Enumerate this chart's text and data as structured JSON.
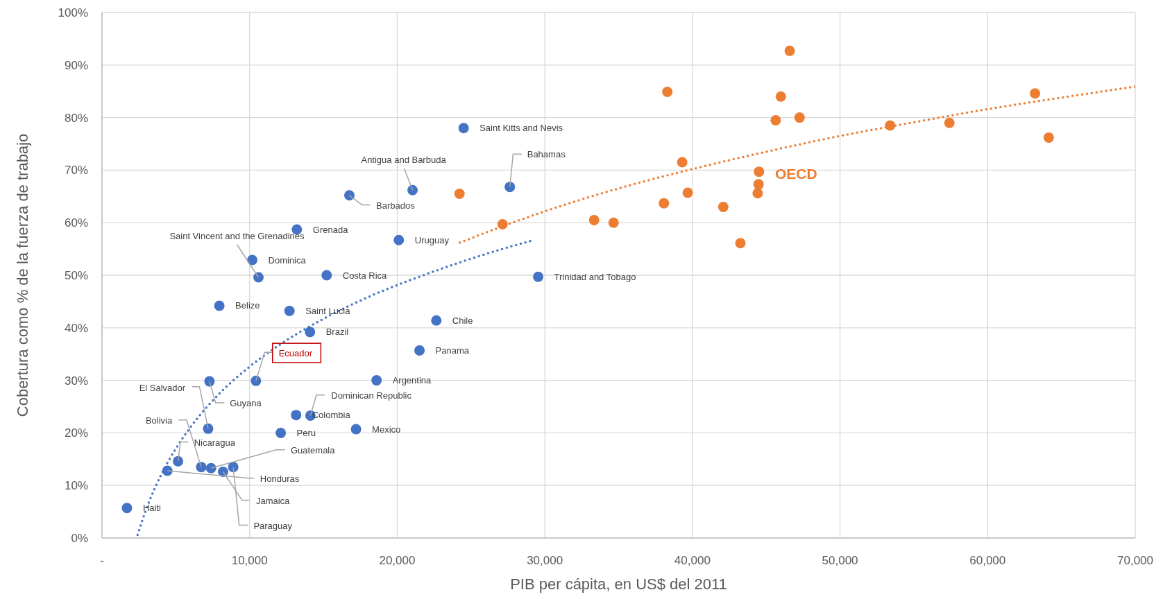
{
  "chart_data": {
    "type": "scatter",
    "xlabel": "PIB per cápita, en US$ del 2011",
    "ylabel": "Cobertura como % de la fuerza de trabajo",
    "xlim": [
      0,
      70000
    ],
    "xticks": [
      {
        "value": 0,
        "label": "-"
      },
      {
        "value": 10000,
        "label": "10,000"
      },
      {
        "value": 20000,
        "label": "20,000"
      },
      {
        "value": 30000,
        "label": "30,000"
      },
      {
        "value": 40000,
        "label": "40,000"
      },
      {
        "value": 50000,
        "label": "50,000"
      },
      {
        "value": 60000,
        "label": "60,000"
      },
      {
        "value": 70000,
        "label": "70,000"
      }
    ],
    "ylim": [
      0,
      100
    ],
    "yticks": [
      {
        "value": 0,
        "label": "0%"
      },
      {
        "value": 10,
        "label": "10%"
      },
      {
        "value": 20,
        "label": "20%"
      },
      {
        "value": 30,
        "label": "30%"
      },
      {
        "value": 40,
        "label": "40%"
      },
      {
        "value": 50,
        "label": "50%"
      },
      {
        "value": 60,
        "label": "60%"
      },
      {
        "value": 70,
        "label": "70%"
      },
      {
        "value": 80,
        "label": "80%"
      },
      {
        "value": 90,
        "label": "90%"
      },
      {
        "value": 100,
        "label": "100%"
      }
    ],
    "grid": true,
    "series": [
      {
        "marker": "circle",
        "color": "#4472c4",
        "x": [
          24500,
          21040,
          27630,
          16760,
          13200,
          20110,
          10180,
          10600,
          15220,
          29550,
          7950,
          12700,
          22650,
          14090,
          21510,
          10430,
          18600,
          7280,
          14120,
          13150,
          12110,
          17210,
          7190,
          5150,
          6720,
          7390,
          8200,
          8890,
          4430,
          1690
        ],
        "values": [
          78.0,
          66.2,
          66.8,
          65.2,
          58.7,
          56.7,
          52.9,
          49.6,
          50.0,
          49.7,
          44.2,
          43.2,
          41.4,
          39.2,
          35.7,
          29.9,
          30.0,
          29.8,
          23.3,
          23.4,
          20.0,
          20.7,
          20.8,
          14.6,
          13.5,
          13.3,
          12.6,
          13.5,
          12.8,
          5.7
        ]
      },
      {
        "type": "line",
        "color": "#4472c4",
        "line_style": "dotted",
        "x": [
          2410,
          3000,
          4000,
          5000,
          6000,
          8000,
          10000,
          12000,
          15000,
          18000,
          21000,
          24000,
          27000,
          29270
        ],
        "values": [
          0.6,
          5.5,
          12.0,
          17.0,
          21.1,
          27.6,
          32.6,
          36.7,
          41.7,
          45.8,
          49.2,
          52.2,
          54.9,
          56.7
        ]
      },
      {
        "name": "OECD",
        "marker": "circle",
        "color": "#ed7d31",
        "x": [
          24220,
          27140,
          38300,
          46590,
          45990,
          45640,
          47260,
          39310,
          44510,
          44480,
          44420,
          39680,
          38070,
          42090,
          33340,
          34660,
          43250,
          53390,
          57410,
          63210,
          64140
        ],
        "values": [
          65.5,
          59.7,
          84.9,
          92.7,
          84.0,
          79.5,
          80.0,
          71.5,
          69.7,
          67.3,
          65.6,
          65.7,
          63.7,
          63.0,
          60.5,
          60.0,
          56.1,
          78.5,
          79.0,
          84.6,
          76.2
        ]
      },
      {
        "type": "line",
        "color": "#ed7d31",
        "line_style": "dotted",
        "x": [
          24240,
          28000,
          32000,
          36000,
          40000,
          45000,
          50000,
          55000,
          60000,
          65000,
          70000
        ],
        "values": [
          56.2,
          60.2,
          64.0,
          67.3,
          70.2,
          73.5,
          76.5,
          79.1,
          81.6,
          83.8,
          85.9
        ]
      }
    ],
    "annotations": [
      {
        "text": "Saint Kitts and Nevis",
        "x": 24500,
        "y": 78.0
      },
      {
        "text": "Antigua and Barbuda",
        "x": 21040,
        "y": 66.2
      },
      {
        "text": "Bahamas",
        "x": 27630,
        "y": 66.8
      },
      {
        "text": "Barbados",
        "x": 16760,
        "y": 65.2
      },
      {
        "text": "Grenada",
        "x": 13200,
        "y": 58.7
      },
      {
        "text": "Uruguay",
        "x": 20110,
        "y": 56.7
      },
      {
        "text": "Dominica",
        "x": 10180,
        "y": 52.9
      },
      {
        "text": "Saint Vincent and the Grenadines",
        "x": 10600,
        "y": 49.6
      },
      {
        "text": "Costa Rica",
        "x": 15220,
        "y": 50.0
      },
      {
        "text": "Trinidad and Tobago",
        "x": 29550,
        "y": 49.7
      },
      {
        "text": "Belize",
        "x": 7950,
        "y": 44.2
      },
      {
        "text": "Saint Lucia",
        "x": 12700,
        "y": 43.2
      },
      {
        "text": "Chile",
        "x": 22650,
        "y": 41.4
      },
      {
        "text": "Brazil",
        "x": 14090,
        "y": 39.2
      },
      {
        "text": "Panama",
        "x": 21510,
        "y": 35.7
      },
      {
        "text": "Ecuador",
        "x": 10430,
        "y": 29.9
      },
      {
        "text": "Argentina",
        "x": 18600,
        "y": 30.0
      },
      {
        "text": "Guyana",
        "x": 7280,
        "y": 29.8
      },
      {
        "text": "Dominican Republic",
        "x": 14120,
        "y": 23.3
      },
      {
        "text": "Colombia",
        "x": 13150,
        "y": 23.4
      },
      {
        "text": "Peru",
        "x": 12110,
        "y": 20.0
      },
      {
        "text": "Mexico",
        "x": 17210,
        "y": 20.7
      },
      {
        "text": "El Salvador",
        "x": 7190,
        "y": 20.8
      },
      {
        "text": "Nicaragua",
        "x": 5150,
        "y": 14.6
      },
      {
        "text": "Bolivia",
        "x": 6720,
        "y": 13.5
      },
      {
        "text": "Guatemala",
        "x": 7390,
        "y": 13.3
      },
      {
        "text": "Jamaica",
        "x": 8200,
        "y": 12.6
      },
      {
        "text": "Paraguay",
        "x": 8890,
        "y": 13.5
      },
      {
        "text": "Honduras",
        "x": 4430,
        "y": 12.8
      },
      {
        "text": "Haiti",
        "x": 1690,
        "y": 5.7
      }
    ]
  }
}
